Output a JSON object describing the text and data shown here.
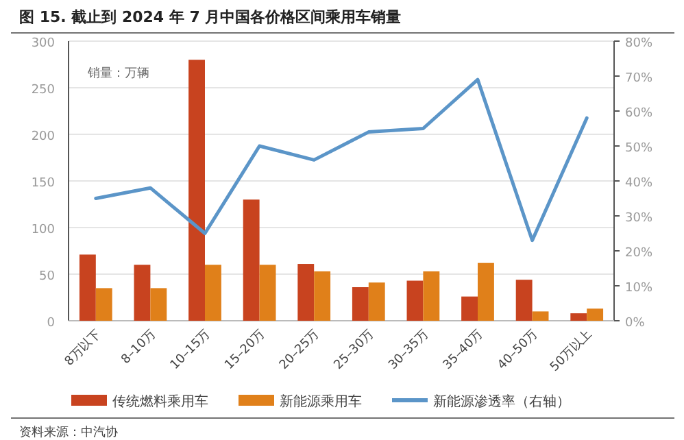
{
  "chart_data": {
    "type": "bar",
    "title": "图 15. 截止到 2024 年 7 月中国各价格区间乘用车销量",
    "annotations": [
      "销量：万辆",
      "资料来源：中汽协"
    ],
    "categories": [
      "8万以下",
      "8–10万",
      "10–15万",
      "15–20万",
      "20–25万",
      "25–30万",
      "30–35万",
      "35–40万",
      "40–50万",
      "50万以上"
    ],
    "series": [
      {
        "name": "传统燃料乘用车",
        "color": "#c8431f",
        "values": [
          71,
          60,
          280,
          130,
          61,
          36,
          43,
          26,
          44,
          8
        ]
      },
      {
        "name": "新能源乘用车",
        "color": "#e0801a",
        "values": [
          35,
          35,
          60,
          60,
          53,
          41,
          53,
          62,
          10,
          13
        ]
      },
      {
        "name": "新能源渗透率（右轴）",
        "type": "line",
        "axis": "y2",
        "color": "#5b95c8",
        "values": [
          35,
          38,
          25,
          50,
          46,
          54,
          55,
          69,
          23,
          58
        ]
      }
    ],
    "ylim": [
      0,
      300
    ],
    "yticks": [
      0,
      50,
      100,
      150,
      200,
      250,
      300
    ],
    "y2lim": [
      0,
      80
    ],
    "y2ticks": [
      {
        "value": 0,
        "label": "0%"
      },
      {
        "value": 10,
        "label": "10%"
      },
      {
        "value": 20,
        "label": "20%"
      },
      {
        "value": 30,
        "label": "30%"
      },
      {
        "value": 40,
        "label": "40%"
      },
      {
        "value": 50,
        "label": "50%"
      },
      {
        "value": 60,
        "label": "60%"
      },
      {
        "value": 70,
        "label": "70%"
      },
      {
        "value": 80,
        "label": "80%"
      }
    ],
    "grid": "y",
    "legend": "bottom"
  }
}
